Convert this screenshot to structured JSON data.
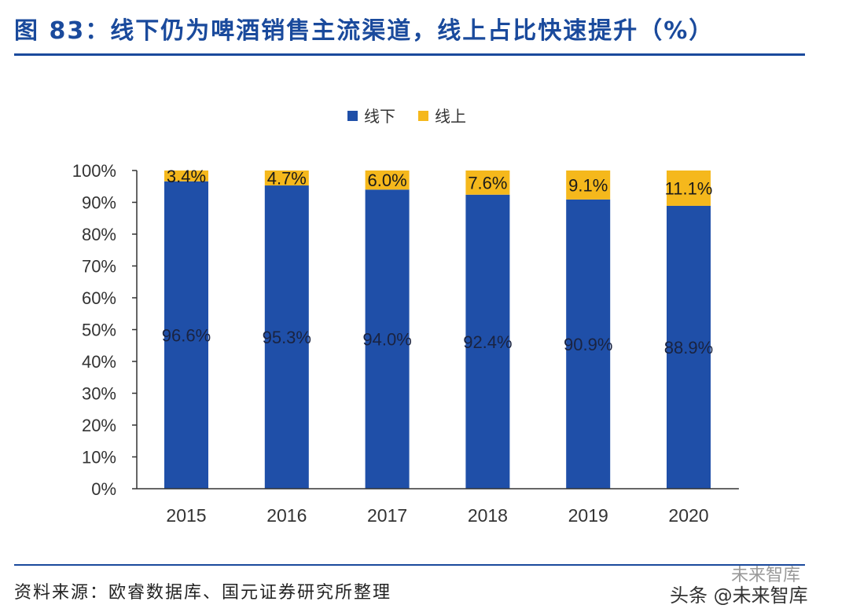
{
  "header": {
    "title": "图 83：线下仍为啤酒销售主流渠道，线上占比快速提升（%）"
  },
  "footer": {
    "source": "资料来源：欧睿数据库、国元证券研究所整理",
    "watermark": "头条 @未来智库",
    "watermark_small": "未来智库"
  },
  "colors": {
    "offline": "#1f4fa8",
    "online": "#f5b81c",
    "title": "#1a4a9c"
  },
  "chart_data": {
    "type": "bar",
    "stacked": true,
    "title": "",
    "categories": [
      "2015",
      "2016",
      "2017",
      "2018",
      "2019",
      "2020"
    ],
    "series": [
      {
        "name": "线下",
        "values": [
          96.6,
          95.3,
          94.0,
          92.4,
          90.9,
          88.9
        ],
        "labels": [
          "96.6%",
          "95.3%",
          "94.0%",
          "92.4%",
          "90.9%",
          "88.9%"
        ]
      },
      {
        "name": "线上",
        "values": [
          3.4,
          4.7,
          6.0,
          7.6,
          9.1,
          11.1
        ],
        "labels": [
          "3.4%",
          "4.7%",
          "6.0%",
          "7.6%",
          "9.1%",
          "11.1%"
        ]
      }
    ],
    "ylim": [
      0,
      100
    ],
    "yticks": [
      "0%",
      "10%",
      "20%",
      "30%",
      "40%",
      "50%",
      "60%",
      "70%",
      "80%",
      "90%",
      "100%"
    ],
    "xlabel": "",
    "ylabel": "",
    "legend": "top-center",
    "grid": false
  }
}
